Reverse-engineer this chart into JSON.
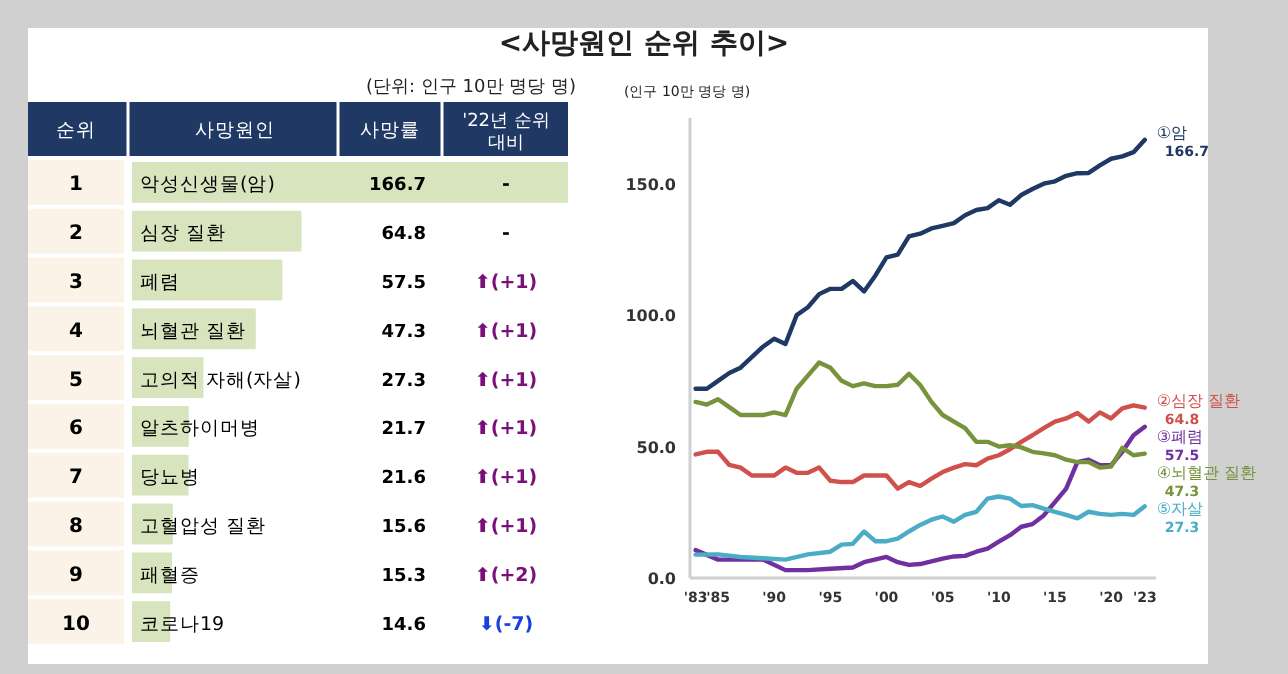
{
  "chart_data": [
    {
      "type": "bar",
      "orientation": "horizontal",
      "title": "<사망원인 순위 추이>",
      "subtitle": "(단위: 인구 10만 명당 명)",
      "categories": [
        "악성신생물(암)",
        "심장 질환",
        "폐렴",
        "뇌혈관 질환",
        "고의적 자해(자살)",
        "알츠하이머병",
        "당뇨병",
        "고혈압성 질환",
        "패혈증",
        "코로나19"
      ],
      "values": [
        166.7,
        64.8,
        57.5,
        47.3,
        27.3,
        21.7,
        21.6,
        15.6,
        15.3,
        14.6
      ],
      "color": "#d7e4bd",
      "data_labels": true,
      "annotations": [
        "순위",
        "사망원인",
        "사망률",
        "'22년 순위 대비",
        "1",
        "-",
        "2",
        "-",
        "3",
        "⬆(+1)",
        "4",
        "⬆(+1)",
        "5",
        "⬆(+1)",
        "6",
        "⬆(+1)",
        "7",
        "⬆(+1)",
        "8",
        "⬆(+1)",
        "9",
        "⬆(+2)",
        "10",
        "⬇(-7)"
      ]
    },
    {
      "type": "line",
      "ylabel": "(인구 10만 명당 명)",
      "xlim": [
        1982.5,
        2024
      ],
      "ylim": [
        0,
        175
      ],
      "xticks": [
        {
          "value": 1983,
          "label": "'83"
        },
        {
          "value": 1985,
          "label": "'85"
        },
        {
          "value": 1990,
          "label": "'90"
        },
        {
          "value": 1995,
          "label": "'95"
        },
        {
          "value": 2000,
          "label": "'00"
        },
        {
          "value": 2005,
          "label": "'05"
        },
        {
          "value": 2010,
          "label": "'10"
        },
        {
          "value": 2015,
          "label": "'15"
        },
        {
          "value": 2020,
          "label": "'20"
        },
        {
          "value": 2023,
          "label": "'23"
        }
      ],
      "yticks": [
        {
          "value": 0,
          "label": "0.0"
        },
        {
          "value": 50,
          "label": "50.0"
        },
        {
          "value": 100,
          "label": "100.0"
        },
        {
          "value": 150,
          "label": "150.0"
        }
      ],
      "series": [
        {
          "name": "①암",
          "color": "#1f3864",
          "x": [
            1983,
            1984,
            1985,
            1986,
            1987,
            1988,
            1989,
            1990,
            1991,
            1992,
            1993,
            1994,
            1995,
            1996,
            1997,
            1998,
            1999,
            2000,
            2001,
            2002,
            2003,
            2004,
            2005,
            2006,
            2007,
            2008,
            2009,
            2010,
            2011,
            2012,
            2013,
            2014,
            2015,
            2016,
            2017,
            2018,
            2019,
            2020,
            2021,
            2022,
            2023
          ],
          "values": [
            72,
            72,
            75,
            78,
            80,
            84,
            88,
            91,
            89,
            100,
            103,
            108,
            110,
            110,
            113,
            109,
            115,
            122,
            123,
            130,
            131,
            133,
            134,
            135,
            138,
            140,
            140.7,
            143.7,
            142,
            145.7,
            148,
            150,
            150.9,
            153,
            154,
            154.1,
            157,
            159.5,
            160.4,
            162,
            166.7
          ],
          "value_labels": [
            null,
            null,
            null,
            null,
            null,
            null,
            null,
            null,
            null,
            null,
            null,
            null,
            null,
            null,
            null,
            null,
            null,
            null,
            null,
            null,
            null,
            null,
            null,
            null,
            null,
            null,
            null,
            null,
            null,
            null,
            null,
            null,
            null,
            null,
            null,
            null,
            null,
            null,
            null,
            null,
            "166.7"
          ]
        },
        {
          "name": "②심장 질환",
          "color": "#d0504c",
          "x": [
            1983,
            1984,
            1985,
            1986,
            1987,
            1988,
            1989,
            1990,
            1991,
            1992,
            1993,
            1994,
            1995,
            1996,
            1997,
            1998,
            1999,
            2000,
            2001,
            2002,
            2003,
            2004,
            2005,
            2006,
            2007,
            2008,
            2009,
            2010,
            2011,
            2012,
            2013,
            2014,
            2015,
            2016,
            2017,
            2018,
            2019,
            2020,
            2021,
            2022,
            2023
          ],
          "values": [
            47,
            48,
            48,
            43,
            42,
            39,
            39,
            39,
            42,
            40,
            40,
            42,
            37,
            36.5,
            36.5,
            39,
            39,
            39,
            34,
            36.5,
            35,
            37.8,
            40.3,
            42,
            43.3,
            42.9,
            45.4,
            46.7,
            49,
            51.8,
            54.3,
            57,
            59.5,
            60.7,
            62.8,
            59.5,
            63,
            60.7,
            64.5,
            65.7,
            64.8
          ],
          "value_labels": [
            null,
            null,
            null,
            null,
            null,
            null,
            null,
            null,
            null,
            null,
            null,
            null,
            null,
            null,
            null,
            null,
            null,
            null,
            null,
            null,
            null,
            null,
            null,
            null,
            null,
            null,
            null,
            null,
            null,
            null,
            null,
            null,
            null,
            null,
            null,
            null,
            null,
            null,
            null,
            null,
            "64.8"
          ]
        },
        {
          "name": "③폐렴",
          "color": "#7030a0",
          "x": [
            1983,
            1985,
            1987,
            1989,
            1991,
            1993,
            1995,
            1997,
            1998,
            2000,
            2001,
            2002,
            2003,
            2005,
            2006,
            2007,
            2008,
            2009,
            2010,
            2011,
            2012,
            2013,
            2014,
            2015,
            2016,
            2017,
            2018,
            2019,
            2020,
            2021,
            2022,
            2023
          ],
          "values": [
            10.6,
            7,
            7,
            7,
            3,
            3,
            3.5,
            4,
            6,
            8,
            6,
            5,
            5.3,
            7.4,
            8.2,
            8.4,
            10,
            11.2,
            13.8,
            16.3,
            19.5,
            20.5,
            23.8,
            28.9,
            34,
            44.1,
            45,
            42.9,
            42.9,
            48,
            54.3,
            57.5
          ],
          "value_labels": [
            null,
            null,
            null,
            null,
            null,
            null,
            null,
            null,
            null,
            null,
            null,
            null,
            null,
            null,
            null,
            null,
            null,
            null,
            null,
            null,
            null,
            null,
            null,
            null,
            null,
            null,
            null,
            null,
            null,
            null,
            null,
            "57.5"
          ]
        },
        {
          "name": "④뇌혈관 질환",
          "color": "#77933c",
          "x": [
            1983,
            1984,
            1985,
            1986,
            1987,
            1988,
            1989,
            1990,
            1991,
            1992,
            1993,
            1994,
            1995,
            1996,
            1997,
            1998,
            1999,
            2000,
            2001,
            2002,
            2003,
            2004,
            2005,
            2006,
            2007,
            2008,
            2009,
            2010,
            2011,
            2012,
            2013,
            2014,
            2015,
            2016,
            2017,
            2018,
            2019,
            2020,
            2021,
            2022,
            2023
          ],
          "values": [
            67,
            66,
            68,
            65,
            62,
            62,
            62,
            63,
            62,
            72,
            77,
            82,
            80,
            75,
            73,
            74,
            73,
            73,
            73.5,
            77.7,
            73.4,
            67,
            62,
            59.5,
            57,
            51.8,
            51.8,
            50,
            50.5,
            49.7,
            48,
            47.4,
            46.7,
            45,
            44.1,
            44.1,
            42,
            42.4,
            49.5,
            46.7,
            47.3
          ],
          "value_labels": [
            null,
            null,
            null,
            null,
            null,
            null,
            null,
            null,
            null,
            null,
            null,
            null,
            null,
            null,
            null,
            null,
            null,
            null,
            null,
            null,
            null,
            null,
            null,
            null,
            null,
            null,
            null,
            null,
            null,
            null,
            null,
            null,
            null,
            null,
            null,
            null,
            null,
            null,
            null,
            null,
            "47.3"
          ]
        },
        {
          "name": "⑤자살",
          "color": "#4bacc6",
          "x": [
            1983,
            1985,
            1987,
            1989,
            1991,
            1993,
            1995,
            1996,
            1997,
            1998,
            1999,
            2000,
            2001,
            2002,
            2003,
            2004,
            2005,
            2006,
            2007,
            2008,
            2009,
            2010,
            2011,
            2012,
            2013,
            2014,
            2015,
            2016,
            2017,
            2018,
            2019,
            2020,
            2021,
            2022,
            2023
          ],
          "values": [
            8.9,
            9,
            8,
            7.5,
            7,
            9,
            10,
            12.7,
            13,
            17.7,
            14,
            14,
            15,
            17.7,
            20.2,
            22.2,
            23.4,
            21.4,
            24,
            25.2,
            30.2,
            31,
            30.2,
            27.4,
            27.7,
            26.4,
            25.2,
            24,
            22.7,
            25.2,
            24.4,
            24,
            24.4,
            24,
            27.3
          ],
          "value_labels": [
            null,
            null,
            null,
            null,
            null,
            null,
            null,
            null,
            null,
            null,
            null,
            null,
            null,
            null,
            null,
            null,
            null,
            null,
            null,
            null,
            null,
            null,
            null,
            null,
            null,
            null,
            null,
            null,
            null,
            null,
            null,
            null,
            null,
            null,
            "27.3"
          ]
        }
      ]
    }
  ]
}
